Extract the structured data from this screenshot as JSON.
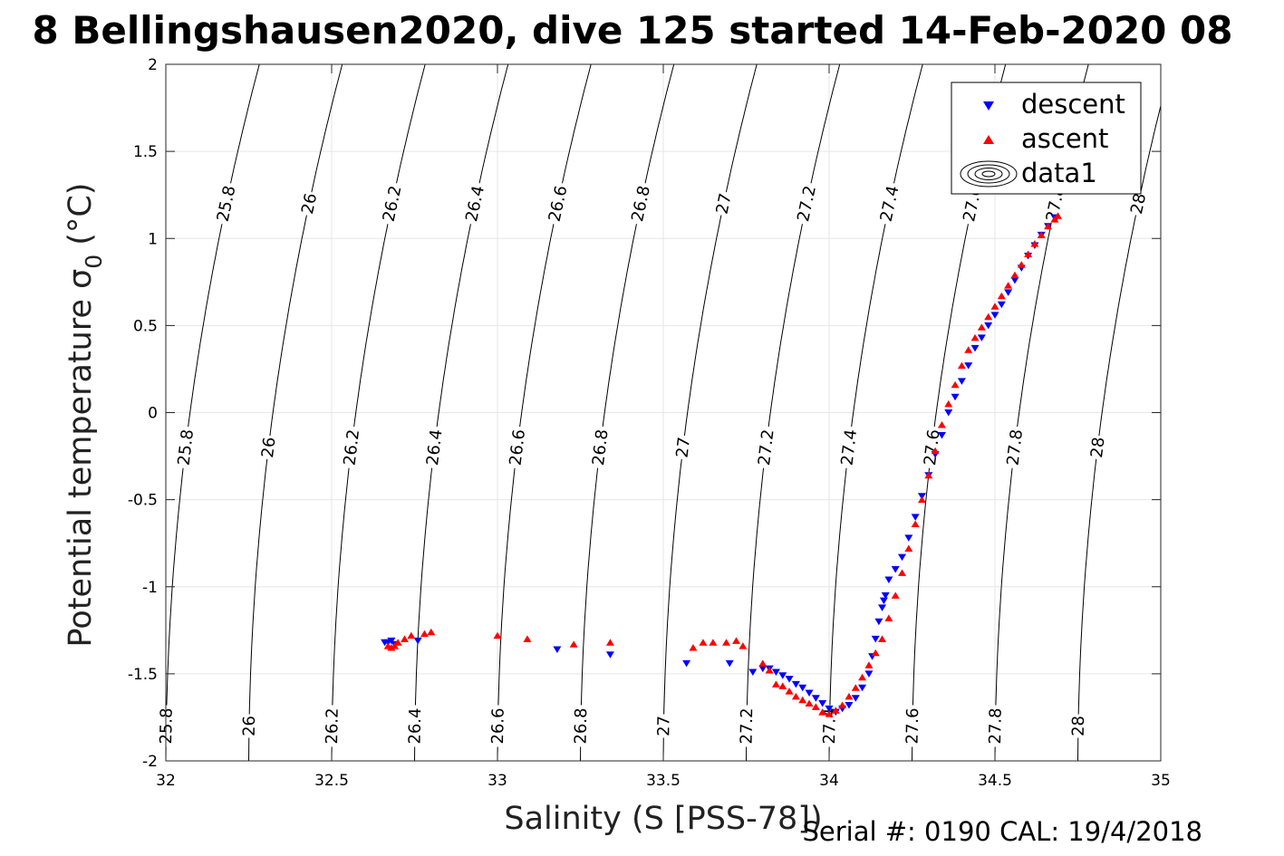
{
  "figure": {
    "title": "8 Bellingshausen2020, dive 125 started 14-Feb-2020 08",
    "xlabel": "Salinity (S [PSS-78])",
    "ylabel": "Potential temperature σ",
    "ylabel_subscript": "0",
    "ylabel_unit": "(°C)",
    "footer": "Serial #: 0190  CAL: 19/4/2018"
  },
  "chart_data": {
    "type": "scatter",
    "xlim": [
      32,
      35
    ],
    "ylim": [
      -2,
      2
    ],
    "xticks": [
      32,
      32.5,
      33,
      33.5,
      34,
      34.5,
      35
    ],
    "xtick_labels": [
      "32",
      "32.5",
      "33",
      "33.5",
      "34",
      "34.5",
      "35"
    ],
    "yticks": [
      -2,
      -1.5,
      -1,
      -0.5,
      0,
      0.5,
      1,
      1.5,
      2
    ],
    "ytick_labels": [
      "-2",
      "-1.5",
      "-1",
      "-0.5",
      "0",
      "0.5",
      "1",
      "1.5",
      "2"
    ],
    "grid": true,
    "legend": {
      "placement": "top-right",
      "entries": [
        {
          "label": "descent",
          "marker": "triangle-down",
          "color": "#0000ff"
        },
        {
          "label": "ascent",
          "marker": "triangle-up",
          "color": "#ff0000"
        },
        {
          "label": "data1",
          "marker": "contour",
          "color": "#000000"
        }
      ]
    },
    "density_contours": {
      "levels": [
        25.8,
        26,
        26.2,
        26.4,
        26.6,
        26.8,
        27,
        27.2,
        27.4,
        27.6,
        27.8,
        28
      ],
      "label_temperatures": [
        1.2,
        -0.2,
        -1.8
      ],
      "labels": [
        "25.8",
        "26",
        "26.2",
        "26.4",
        "26.6",
        "26.8",
        "27",
        "27.2",
        "27.4",
        "27.6",
        "27.8",
        "28"
      ],
      "color": "#000000"
    },
    "series": [
      {
        "name": "descent",
        "color": "#0000ff",
        "marker": "triangle-down",
        "x": [
          32.66,
          32.67,
          32.68,
          32.69,
          32.76,
          33.18,
          33.34,
          33.57,
          33.7,
          33.77,
          33.8,
          33.82,
          33.84,
          33.86,
          33.88,
          33.9,
          33.92,
          33.94,
          33.96,
          33.98,
          34.0,
          34.02,
          34.04,
          34.06,
          34.08,
          34.1,
          34.12,
          34.13,
          34.14,
          34.15,
          34.16,
          34.165,
          34.17,
          34.18,
          34.2,
          34.22,
          34.24,
          34.26,
          34.28,
          34.3,
          34.32,
          34.34,
          34.36,
          34.38,
          34.4,
          34.42,
          34.44,
          34.46,
          34.48,
          34.5,
          34.52,
          34.54,
          34.56,
          34.58,
          34.6,
          34.62,
          34.64,
          34.66,
          34.68
        ],
        "y": [
          -1.32,
          -1.32,
          -1.31,
          -1.33,
          -1.31,
          -1.36,
          -1.39,
          -1.44,
          -1.44,
          -1.49,
          -1.47,
          -1.47,
          -1.49,
          -1.51,
          -1.53,
          -1.56,
          -1.58,
          -1.61,
          -1.64,
          -1.67,
          -1.7,
          -1.72,
          -1.7,
          -1.68,
          -1.64,
          -1.58,
          -1.5,
          -1.4,
          -1.3,
          -1.2,
          -1.12,
          -1.08,
          -1.05,
          -0.96,
          -0.9,
          -0.83,
          -0.72,
          -0.6,
          -0.48,
          -0.36,
          -0.24,
          -0.13,
          0.0,
          0.09,
          0.18,
          0.27,
          0.37,
          0.43,
          0.5,
          0.56,
          0.62,
          0.69,
          0.76,
          0.83,
          0.9,
          0.96,
          1.02,
          1.07,
          1.12
        ]
      },
      {
        "name": "ascent",
        "color": "#ff0000",
        "marker": "triangle-up",
        "x": [
          32.67,
          32.68,
          32.69,
          32.7,
          32.72,
          32.74,
          32.78,
          32.8,
          33.0,
          33.09,
          33.23,
          33.34,
          33.59,
          33.62,
          33.65,
          33.69,
          33.72,
          33.74,
          33.8,
          33.82,
          33.84,
          33.86,
          33.88,
          33.9,
          33.92,
          33.94,
          33.96,
          33.98,
          34.0,
          34.02,
          34.04,
          34.06,
          34.08,
          34.1,
          34.12,
          34.14,
          34.16,
          34.18,
          34.2,
          34.22,
          34.24,
          34.26,
          34.28,
          34.3,
          34.32,
          34.34,
          34.36,
          34.38,
          34.4,
          34.42,
          34.44,
          34.46,
          34.48,
          34.5,
          34.52,
          34.54,
          34.56,
          34.58,
          34.6,
          34.62,
          34.64,
          34.66,
          34.68,
          34.69
        ],
        "y": [
          -1.34,
          -1.35,
          -1.34,
          -1.32,
          -1.3,
          -1.28,
          -1.27,
          -1.26,
          -1.28,
          -1.3,
          -1.33,
          -1.32,
          -1.35,
          -1.32,
          -1.32,
          -1.32,
          -1.31,
          -1.34,
          -1.44,
          -1.48,
          -1.56,
          -1.57,
          -1.6,
          -1.63,
          -1.65,
          -1.67,
          -1.69,
          -1.72,
          -1.73,
          -1.71,
          -1.68,
          -1.63,
          -1.58,
          -1.52,
          -1.45,
          -1.38,
          -1.3,
          -1.18,
          -1.05,
          -0.92,
          -0.78,
          -0.64,
          -0.5,
          -0.36,
          -0.22,
          -0.07,
          0.05,
          0.16,
          0.27,
          0.36,
          0.43,
          0.49,
          0.55,
          0.61,
          0.67,
          0.73,
          0.79,
          0.85,
          0.91,
          0.97,
          1.02,
          1.07,
          1.11,
          1.13
        ]
      }
    ]
  }
}
